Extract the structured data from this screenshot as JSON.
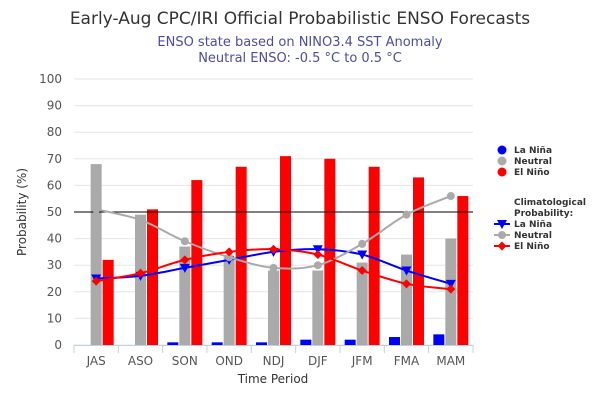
{
  "chart_data": {
    "type": "bar",
    "title": "Early-Aug CPC/IRI Official Probabilistic ENSO Forecasts",
    "subtitle_line1": "ENSO state based on NINO3.4 SST Anomaly",
    "subtitle_line2": "Neutral ENSO: -0.5 °C to 0.5 °C",
    "xlabel": "Time Period",
    "ylabel": "Probability (%)",
    "ylim": [
      0,
      100
    ],
    "yticks": [
      0,
      10,
      20,
      30,
      40,
      50,
      60,
      70,
      80,
      90,
      100
    ],
    "reference_line": 50,
    "categories": [
      "JAS",
      "ASO",
      "SON",
      "OND",
      "NDJ",
      "DJF",
      "JFM",
      "FMA",
      "MAM"
    ],
    "series": [
      {
        "name": "La Niña",
        "color": "#0000ff",
        "values": [
          0,
          0,
          1,
          1,
          1,
          2,
          2,
          3,
          4
        ]
      },
      {
        "name": "Neutral",
        "color": "#aaaaaa",
        "values": [
          68,
          49,
          37,
          33,
          28,
          28,
          31,
          34,
          40
        ]
      },
      {
        "name": "El Niño",
        "color": "#ff0000",
        "values": [
          32,
          51,
          62,
          67,
          71,
          70,
          67,
          63,
          56
        ]
      }
    ],
    "climatology_title_line1": "Climatological",
    "climatology_title_line2": "Probability:",
    "climatology": [
      {
        "name": "La Niña",
        "color": "#0000ff",
        "marker": "triangle-down",
        "values": [
          25,
          26,
          29,
          32,
          35,
          36,
          34,
          28,
          23
        ]
      },
      {
        "name": "Neutral",
        "color": "#aaaaaa",
        "marker": "circle",
        "values": [
          51,
          47,
          39,
          33,
          29,
          30,
          38,
          49,
          56
        ]
      },
      {
        "name": "El Niño",
        "color": "#ff0000",
        "marker": "diamond",
        "values": [
          24,
          27,
          32,
          35,
          36,
          34,
          28,
          23,
          21
        ]
      }
    ]
  }
}
